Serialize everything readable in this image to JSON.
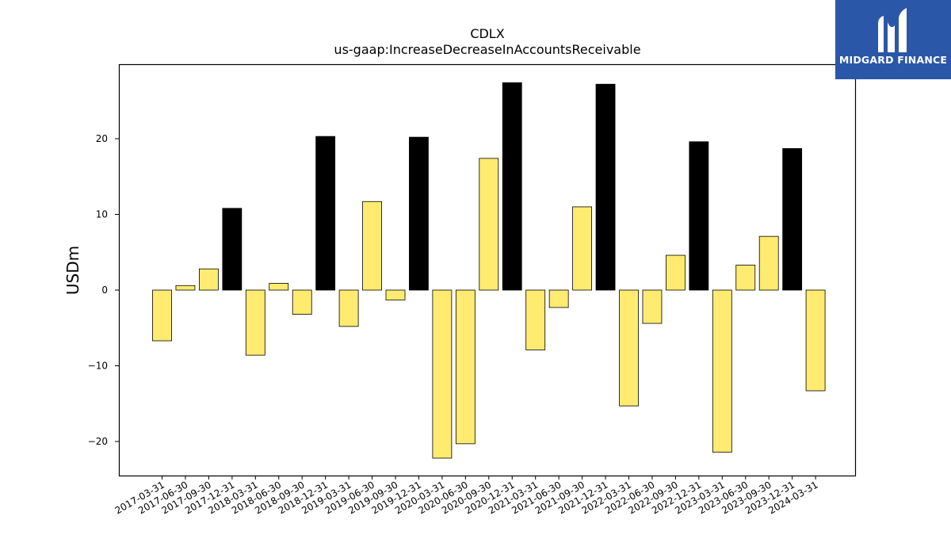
{
  "chart_data": {
    "type": "bar",
    "title": "CDLX",
    "subtitle": "us-gaap:IncreaseDecreaseInAccountsReceivable",
    "ylabel": "USDm",
    "xlabel": "",
    "ylim": [
      -25,
      30
    ],
    "yticks": [
      -20,
      -10,
      0,
      10,
      20
    ],
    "grid": false,
    "categories": [
      "2017-03-31",
      "2017-06-30",
      "2017-09-30",
      "2017-12-31",
      "2018-03-31",
      "2018-06-30",
      "2018-09-30",
      "2018-12-31",
      "2019-03-31",
      "2019-06-30",
      "2019-09-30",
      "2019-12-31",
      "2020-03-31",
      "2020-06-30",
      "2020-09-30",
      "2020-12-31",
      "2021-03-31",
      "2021-06-30",
      "2021-09-30",
      "2021-12-31",
      "2022-03-31",
      "2022-06-30",
      "2022-09-30",
      "2022-12-31",
      "2023-03-31",
      "2023-06-30",
      "2023-09-30",
      "2023-12-31",
      "2024-03-31"
    ],
    "values": [
      -6.7,
      0.6,
      2.8,
      10.8,
      -8.6,
      0.9,
      -3.2,
      20.3,
      -4.8,
      11.7,
      -1.3,
      20.2,
      -22.2,
      -20.3,
      17.4,
      27.4,
      -7.9,
      -2.3,
      11.0,
      27.2,
      -15.3,
      -4.4,
      4.6,
      19.6,
      -21.4,
      3.3,
      7.1,
      18.7,
      -13.3
    ],
    "colors": {
      "quarter": "#ffeb70",
      "year_end": "#000000",
      "edge": "#000000"
    }
  },
  "logo": {
    "text": "MIDGARD FINANCE",
    "color": "#2b57a8"
  }
}
